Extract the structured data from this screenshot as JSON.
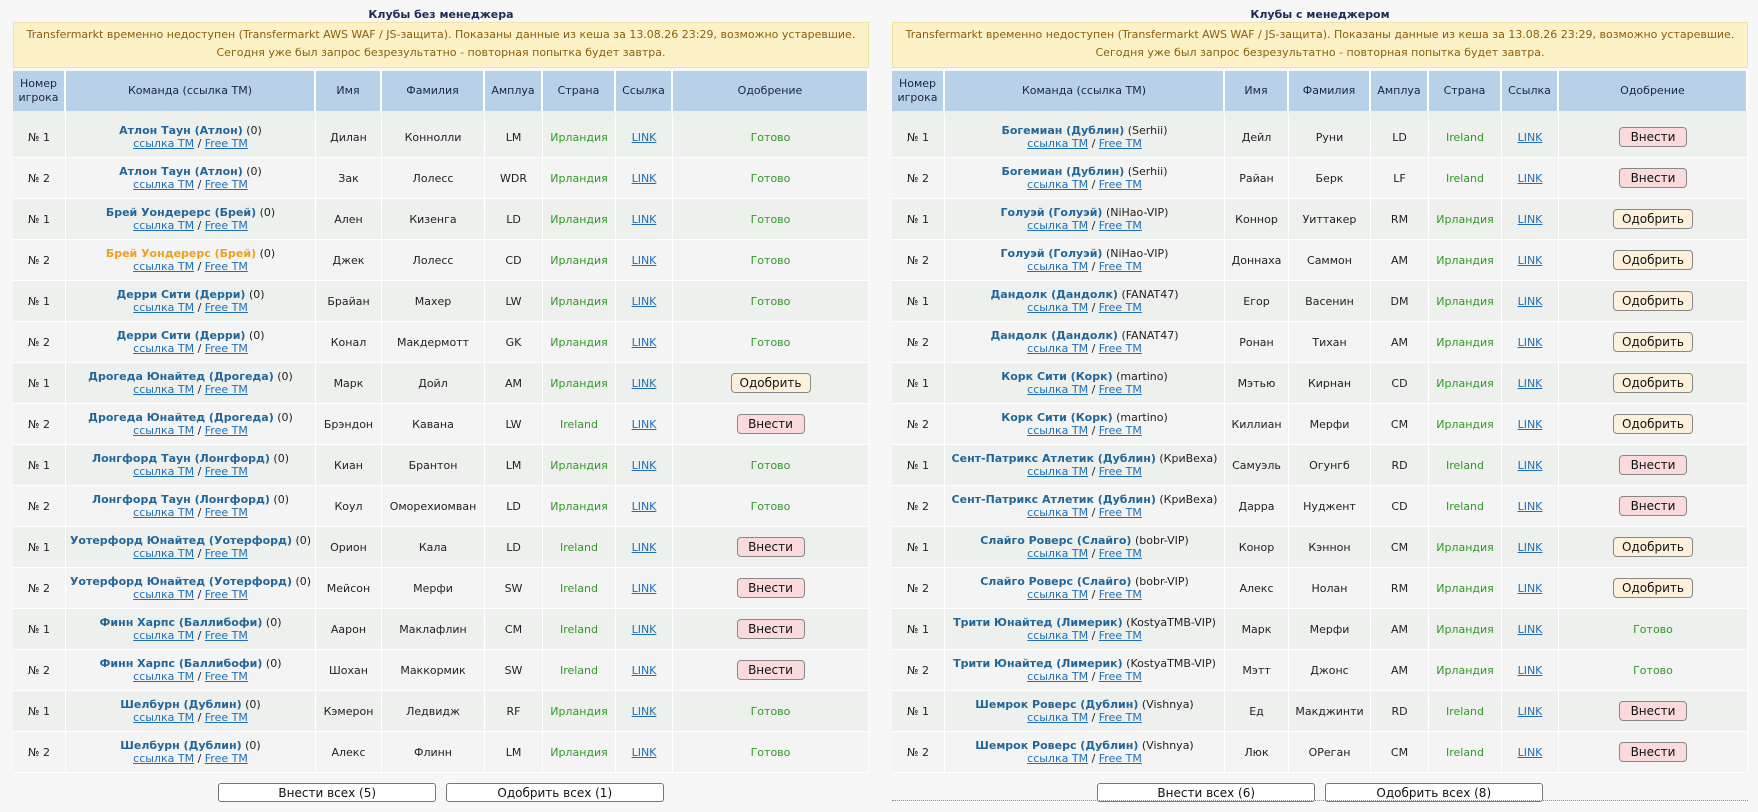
{
  "left": {
    "title": "Клубы без менеджера",
    "notice": "Transfermarkt временно недоступен (Transfermarkt AWS WAF / JS-защита). Показаны данные из кеша за 13.08.26 23:29, возможно устаревшие. Сегодня уже был запрос безрезультатно - повторная попытка будет завтра.",
    "headers": [
      "Номер игрока",
      "Команда (ссылка ТМ)",
      "Имя",
      "Фамилия",
      "Амплуа",
      "Страна",
      "Ссылка",
      "Одобрение"
    ],
    "rows": [
      {
        "num": "№ 1",
        "team": "Атлон Таун (Атлон)",
        "mgr": "(0)",
        "first": "Дилан",
        "last": "Коннолли",
        "pos": "LM",
        "country": "Ирландия",
        "status": "ready",
        "status_text": "Готово"
      },
      {
        "num": "№ 2",
        "team": "Атлон Таун (Атлон)",
        "mgr": "(0)",
        "first": "Зак",
        "last": "Лолесс",
        "pos": "WDR",
        "country": "Ирландия",
        "status": "ready",
        "status_text": "Готово"
      },
      {
        "num": "№ 1",
        "team": "Брей Уондерерс (Брей)",
        "mgr": "(0)",
        "first": "Ален",
        "last": "Кизенга",
        "pos": "LD",
        "country": "Ирландия",
        "status": "ready",
        "status_text": "Готово"
      },
      {
        "num": "№ 2",
        "team": "Брей Уондерерс (Брей)",
        "mgr": "(0)",
        "first": "Джек",
        "last": "Лолесс",
        "pos": "CD",
        "country": "Ирландия",
        "status": "ready",
        "status_text": "Готово",
        "highlight": true
      },
      {
        "num": "№ 1",
        "team": "Дерри Сити (Дерри)",
        "mgr": "(0)",
        "first": "Брайан",
        "last": "Махер",
        "pos": "LW",
        "country": "Ирландия",
        "status": "ready",
        "status_text": "Готово"
      },
      {
        "num": "№ 2",
        "team": "Дерри Сити (Дерри)",
        "mgr": "(0)",
        "first": "Конал",
        "last": "Макдермотт",
        "pos": "GK",
        "country": "Ирландия",
        "status": "ready",
        "status_text": "Готово"
      },
      {
        "num": "№ 1",
        "team": "Дрогеда Юнайтед (Дрогеда)",
        "mgr": "(0)",
        "first": "Марк",
        "last": "Дойл",
        "pos": "AM",
        "country": "Ирландия",
        "status": "approve",
        "status_text": "Одобрить"
      },
      {
        "num": "№ 2",
        "team": "Дрогеда Юнайтед (Дрогеда)",
        "mgr": "(0)",
        "first": "Брэндон",
        "last": "Кавана",
        "pos": "LW",
        "country": "Ireland",
        "status": "add",
        "status_text": "Внести"
      },
      {
        "num": "№ 1",
        "team": "Лонгфорд Таун (Лонгфорд)",
        "mgr": "(0)",
        "first": "Киан",
        "last": "Брантон",
        "pos": "LM",
        "country": "Ирландия",
        "status": "ready",
        "status_text": "Готово"
      },
      {
        "num": "№ 2",
        "team": "Лонгфорд Таун (Лонгфорд)",
        "mgr": "(0)",
        "first": "Коул",
        "last": "Оморехиомван",
        "pos": "LD",
        "country": "Ирландия",
        "status": "ready",
        "status_text": "Готово"
      },
      {
        "num": "№ 1",
        "team": "Уотерфорд Юнайтед (Уотерфорд)",
        "mgr": "(0)",
        "first": "Орион",
        "last": "Кала",
        "pos": "LD",
        "country": "Ireland",
        "status": "add",
        "status_text": "Внести"
      },
      {
        "num": "№ 2",
        "team": "Уотерфорд Юнайтед (Уотерфорд)",
        "mgr": "(0)",
        "first": "Мейсон",
        "last": "Мерфи",
        "pos": "SW",
        "country": "Ireland",
        "status": "add",
        "status_text": "Внести"
      },
      {
        "num": "№ 1",
        "team": "Финн Харпс (Баллибофи)",
        "mgr": "(0)",
        "first": "Аарон",
        "last": "Маклафлин",
        "pos": "CM",
        "country": "Ireland",
        "status": "add",
        "status_text": "Внести"
      },
      {
        "num": "№ 2",
        "team": "Финн Харпс (Баллибофи)",
        "mgr": "(0)",
        "first": "Шохан",
        "last": "Маккормик",
        "pos": "SW",
        "country": "Ireland",
        "status": "add",
        "status_text": "Внести"
      },
      {
        "num": "№ 1",
        "team": "Шелбурн (Дублин)",
        "mgr": "(0)",
        "first": "Кэмерон",
        "last": "Ледвидж",
        "pos": "RF",
        "country": "Ирландия",
        "status": "ready",
        "status_text": "Готово"
      },
      {
        "num": "№ 2",
        "team": "Шелбурн (Дублин)",
        "mgr": "(0)",
        "first": "Алекс",
        "last": "Флинн",
        "pos": "LM",
        "country": "Ирландия",
        "status": "ready",
        "status_text": "Готово"
      }
    ],
    "add_all": "Внести всех (5)",
    "approve_all": "Одобрить всех (1)"
  },
  "right": {
    "title": "Клубы с менеджером",
    "notice": "Transfermarkt временно недоступен (Transfermarkt AWS WAF / JS-защита). Показаны данные из кеша за 13.08.26 23:29, возможно устаревшие. Сегодня уже был запрос безрезультатно - повторная попытка будет завтра.",
    "headers": [
      "Номер игрока",
      "Команда (ссылка ТМ)",
      "Имя",
      "Фамилия",
      "Амплуа",
      "Страна",
      "Ссылка",
      "Одобрение"
    ],
    "rows": [
      {
        "num": "№ 1",
        "team": "Богемиан (Дублин)",
        "mgr": "(Serhii)",
        "first": "Дейл",
        "last": "Руни",
        "pos": "LD",
        "country": "Ireland",
        "status": "add",
        "status_text": "Внести"
      },
      {
        "num": "№ 2",
        "team": "Богемиан (Дублин)",
        "mgr": "(Serhii)",
        "first": "Райан",
        "last": "Берк",
        "pos": "LF",
        "country": "Ireland",
        "status": "add",
        "status_text": "Внести"
      },
      {
        "num": "№ 1",
        "team": "Голуэй (Голуэй)",
        "mgr": "(NiHao-VIP)",
        "first": "Коннор",
        "last": "Уиттакер",
        "pos": "RM",
        "country": "Ирландия",
        "status": "approve",
        "status_text": "Одобрить"
      },
      {
        "num": "№ 2",
        "team": "Голуэй (Голуэй)",
        "mgr": "(NiHao-VIP)",
        "first": "Доннаха",
        "last": "Саммон",
        "pos": "AM",
        "country": "Ирландия",
        "status": "approve",
        "status_text": "Одобрить"
      },
      {
        "num": "№ 1",
        "team": "Дандолк (Дандолк)",
        "mgr": "(FANAT47)",
        "first": "Егор",
        "last": "Васенин",
        "pos": "DM",
        "country": "Ирландия",
        "status": "approve",
        "status_text": "Одобрить"
      },
      {
        "num": "№ 2",
        "team": "Дандолк (Дандолк)",
        "mgr": "(FANAT47)",
        "first": "Ронан",
        "last": "Тихан",
        "pos": "AM",
        "country": "Ирландия",
        "status": "approve",
        "status_text": "Одобрить"
      },
      {
        "num": "№ 1",
        "team": "Корк Сити (Корк)",
        "mgr": "(martino)",
        "first": "Мэтью",
        "last": "Кирнан",
        "pos": "CD",
        "country": "Ирландия",
        "status": "approve",
        "status_text": "Одобрить"
      },
      {
        "num": "№ 2",
        "team": "Корк Сити (Корк)",
        "mgr": "(martino)",
        "first": "Киллиан",
        "last": "Мерфи",
        "pos": "CM",
        "country": "Ирландия",
        "status": "approve",
        "status_text": "Одобрить"
      },
      {
        "num": "№ 1",
        "team": "Сент-Патрикс Атлетик (Дублин)",
        "mgr": "(КриВеха)",
        "first": "Самуэль",
        "last": "Огунгб",
        "pos": "RD",
        "country": "Ireland",
        "status": "add",
        "status_text": "Внести"
      },
      {
        "num": "№ 2",
        "team": "Сент-Патрикс Атлетик (Дублин)",
        "mgr": "(КриВеха)",
        "first": "Дарра",
        "last": "Нуджент",
        "pos": "CD",
        "country": "Ireland",
        "status": "add",
        "status_text": "Внести"
      },
      {
        "num": "№ 1",
        "team": "Слайго Роверс (Слайго)",
        "mgr": "(bobr-VIP)",
        "first": "Конор",
        "last": "Кэннон",
        "pos": "CM",
        "country": "Ирландия",
        "status": "approve",
        "status_text": "Одобрить"
      },
      {
        "num": "№ 2",
        "team": "Слайго Роверс (Слайго)",
        "mgr": "(bobr-VIP)",
        "first": "Алекс",
        "last": "Нолан",
        "pos": "RM",
        "country": "Ирландия",
        "status": "approve",
        "status_text": "Одобрить"
      },
      {
        "num": "№ 1",
        "team": "Трити Юнайтед (Лимерик)",
        "mgr": "(KostyaTMB-VIP)",
        "first": "Марк",
        "last": "Мерфи",
        "pos": "AM",
        "country": "Ирландия",
        "status": "ready",
        "status_text": "Готово"
      },
      {
        "num": "№ 2",
        "team": "Трити Юнайтед (Лимерик)",
        "mgr": "(KostyaTMB-VIP)",
        "first": "Мэтт",
        "last": "Джонс",
        "pos": "AM",
        "country": "Ирландия",
        "status": "ready",
        "status_text": "Готово"
      },
      {
        "num": "№ 1",
        "team": "Шемрок Роверс (Дублин)",
        "mgr": "(Vishnya)",
        "first": "Ед",
        "last": "Макджинти",
        "pos": "RD",
        "country": "Ireland",
        "status": "add",
        "status_text": "Внести"
      },
      {
        "num": "№ 2",
        "team": "Шемрок Роверс (Дублин)",
        "mgr": "(Vishnya)",
        "first": "Люк",
        "last": "ОРеган",
        "pos": "CM",
        "country": "Ireland",
        "status": "add",
        "status_text": "Внести"
      }
    ],
    "add_all": "Внести всех (6)",
    "approve_all": "Одобрить всех (8)"
  },
  "common": {
    "tm_link": "ссылка ТМ",
    "free_tm": "Free TM",
    "slash": "/",
    "player_link": "LINK"
  },
  "colors": {
    "header_bg": "#b9d1e8",
    "notice_bg": "#fdf2c7",
    "team_link": "#23679a",
    "highlight_team": "#f0a020",
    "green_text": "#2f9a24",
    "approve_bg": "#fdf1dc",
    "add_bg": "#fadadb"
  }
}
